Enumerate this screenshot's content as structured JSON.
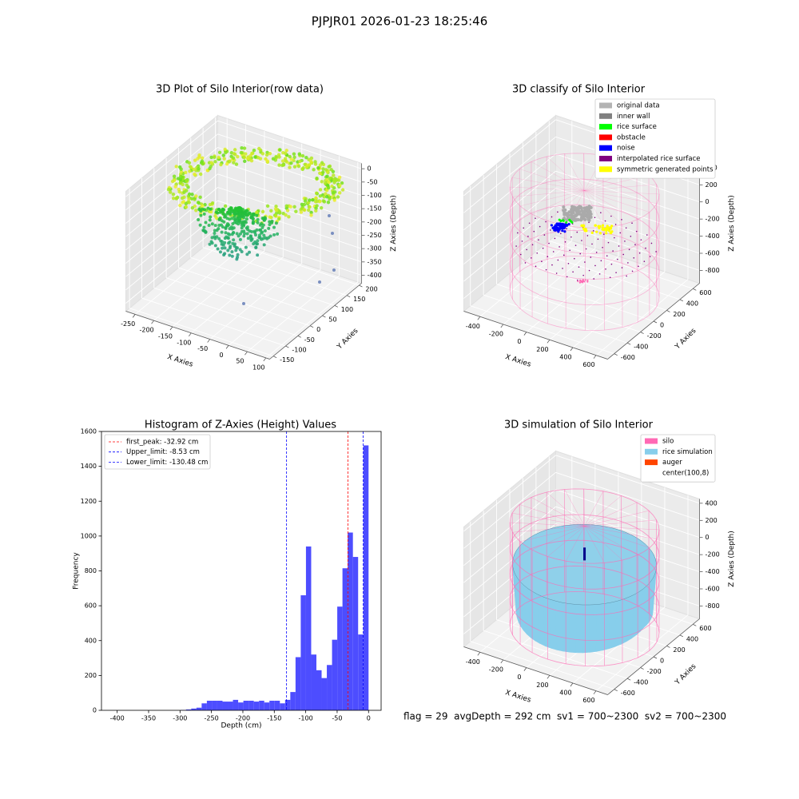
{
  "title": "PJPJR01 2026-01-23 18:25:46",
  "annotation": "flag = 29  avgDepth = 292 cm  sv1 = 700~2300  sv2 = 700~2300",
  "chart_data": [
    {
      "type": "scatter3d",
      "title": "3D Plot of Silo Interior(row data)",
      "xlabel": "X Axies",
      "ylabel": "Y Axies",
      "zlabel": "Z Axies (Depth)",
      "xlim": [
        -275,
        110
      ],
      "ylim": [
        -165,
        210
      ],
      "zlim": [
        -430,
        20
      ],
      "xticks": [
        -250,
        -200,
        -150,
        -100,
        -50,
        0,
        50,
        100
      ],
      "yticks": [
        -150,
        -100,
        -50,
        0,
        50,
        100,
        150,
        200
      ],
      "zticks": [
        0,
        -50,
        -100,
        -150,
        -200,
        -250,
        -300,
        -350,
        -400
      ]
    },
    {
      "type": "scatter3d",
      "title": "3D classify of Silo Interior",
      "xlabel": "X Axies",
      "ylabel": "Y Axies",
      "zlabel": "Z Axies (Depth)",
      "xlim": [
        -540,
        700
      ],
      "ylim": [
        -700,
        700
      ],
      "zlim": [
        -950,
        450
      ],
      "xticks": [
        -400,
        -200,
        0,
        200,
        400,
        600
      ],
      "yticks": [
        -600,
        -400,
        -200,
        0,
        200,
        400,
        600
      ],
      "zticks": [
        -800,
        -600,
        -400,
        -200,
        0,
        200,
        400
      ],
      "legend_loc": "upper right",
      "legend": [
        {
          "name": "original data",
          "color": "#b3b3b3"
        },
        {
          "name": "inner wall",
          "color": "#808080"
        },
        {
          "name": "rice surface",
          "color": "#00ff00"
        },
        {
          "name": "obstacle",
          "color": "#ff0000"
        },
        {
          "name": "noise",
          "color": "#0000ff"
        },
        {
          "name": "interpolated rice surface",
          "color": "#800080"
        },
        {
          "name": "symmetric generated points",
          "color": "#ffff00"
        }
      ]
    },
    {
      "type": "histogram",
      "title": "Histogram of Z-Axies (Height) Values",
      "xlabel": "Depth (cm)",
      "ylabel": "Frequency",
      "color": "#4d4dff",
      "bins": [
        -415,
        -406.7,
        -398.4,
        -390.1,
        -381.8,
        -373.5,
        -365.2,
        -356.9,
        -348.6,
        -340.3,
        -332,
        -323.7,
        -315.4,
        -307.1,
        -298.8,
        -290.5,
        -282.2,
        -273.9,
        -265.6,
        -257.3,
        -249,
        -240.7,
        -232.4,
        -224.1,
        -215.8,
        -207.5,
        -199.2,
        -190.9,
        -182.6,
        -174.3,
        -166,
        -157.7,
        -149.4,
        -141.1,
        -132.8,
        -124.5,
        -116.2,
        -107.9,
        -99.6,
        -91.3,
        -83,
        -74.7,
        -66.4,
        -58.1,
        -49.8,
        -41.5,
        -33.2,
        -24.9,
        -16.6,
        -8.3,
        0
      ],
      "counts": [
        0,
        0,
        0,
        0,
        0,
        0,
        0,
        0,
        0,
        0,
        0,
        0,
        0,
        0,
        2,
        5,
        10,
        15,
        40,
        55,
        55,
        55,
        50,
        50,
        60,
        45,
        55,
        55,
        50,
        55,
        45,
        55,
        55,
        40,
        60,
        105,
        305,
        660,
        940,
        320,
        230,
        185,
        260,
        405,
        595,
        815,
        1020,
        880,
        435,
        1520
      ],
      "xlim": [
        -425,
        20
      ],
      "ylim": [
        0,
        1600
      ],
      "xticks": [
        -400,
        -350,
        -300,
        -250,
        -200,
        -150,
        -100,
        -50,
        0
      ],
      "yticks": [
        0,
        200,
        400,
        600,
        800,
        1000,
        1200,
        1400,
        1600
      ],
      "legend_loc": "upper left",
      "vlines": [
        {
          "label": "first_peak: -32.92 cm",
          "value": -32.92,
          "color": "#ff0000"
        },
        {
          "label": "Upper_limit: -8.53 cm",
          "value": -8.53,
          "color": "#0000ff"
        },
        {
          "label": "Lower_limit: -130.48 cm",
          "value": -130.48,
          "color": "#0000ff"
        }
      ]
    },
    {
      "type": "surface3d",
      "title": "3D simulation of Silo Interior",
      "xlabel": "X Axies",
      "ylabel": "Y Axies",
      "zlabel": "Z Axies (Depth)",
      "xlim": [
        -540,
        700
      ],
      "ylim": [
        -700,
        700
      ],
      "zlim": [
        -950,
        450
      ],
      "xticks": [
        -400,
        -200,
        0,
        200,
        400,
        600
      ],
      "yticks": [
        -600,
        -400,
        -200,
        0,
        200,
        400,
        600
      ],
      "zticks": [
        -800,
        -600,
        -400,
        -200,
        0,
        200,
        400
      ],
      "legend_loc": "upper right",
      "legend": [
        {
          "name": "silo",
          "color": "#ff69b4"
        },
        {
          "name": "rice simulation",
          "color": "#87ceeb"
        },
        {
          "name": "auger",
          "color": "#ff4500"
        },
        {
          "name": "center(100,8)",
          "color": "#ffffff"
        }
      ]
    }
  ]
}
